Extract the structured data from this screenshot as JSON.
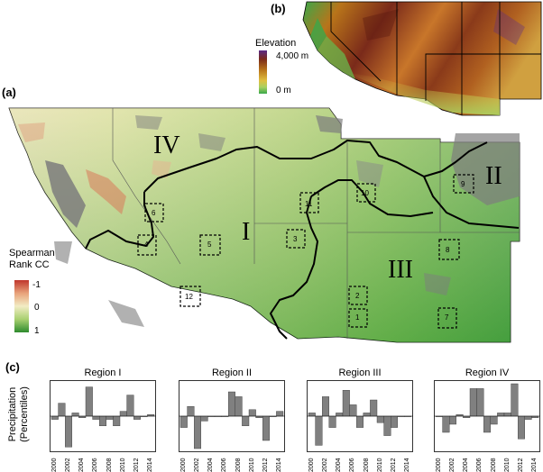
{
  "panels": {
    "a": "(a)",
    "b": "(b)",
    "c": "(c)"
  },
  "elevation_legend": {
    "title": "Elevation",
    "max_label": "4,000 m",
    "min_label": "0 m",
    "colors": [
      "#5b2a86",
      "#7a2a1a",
      "#b8741a",
      "#e0c040",
      "#a8d060",
      "#3aa84a"
    ]
  },
  "correlation_legend": {
    "title_line1": "Spearman",
    "title_line2": "Rank CC",
    "labels": [
      "-1",
      "0",
      "1"
    ],
    "colors": [
      "#c0362c",
      "#e8a27a",
      "#f2ecc4",
      "#a8d070",
      "#2e8b2e"
    ]
  },
  "regions": [
    "I",
    "II",
    "III",
    "IV"
  ],
  "sites": [
    "1",
    "2",
    "3",
    "4",
    "5",
    "6",
    "7",
    "8",
    "9",
    "10",
    "11",
    "12"
  ],
  "bar_charts": {
    "y_axis_label_line1": "Precipitation",
    "y_axis_label_line2": "(Percentiles)",
    "x_tick_labels": [
      "2000",
      "2002",
      "2004",
      "2006",
      "2008",
      "2010",
      "2012",
      "2014"
    ]
  },
  "chart_data": [
    {
      "type": "bar",
      "title": "Region I",
      "categories": [
        "2000",
        "2001",
        "2002",
        "2003",
        "2004",
        "2005",
        "2006",
        "2007",
        "2008",
        "2009",
        "2010",
        "2011",
        "2012",
        "2013",
        "2014"
      ],
      "values": [
        -0.1,
        0.4,
        -0.95,
        0.1,
        -0.05,
        0.9,
        -0.1,
        -0.3,
        -0.1,
        -0.3,
        0.15,
        0.65,
        -0.1,
        0.0,
        0.05
      ]
    },
    {
      "type": "bar",
      "title": "Region II",
      "categories": [
        "2000",
        "2001",
        "2002",
        "2003",
        "2004",
        "2005",
        "2006",
        "2007",
        "2008",
        "2009",
        "2010",
        "2011",
        "2012",
        "2013",
        "2014"
      ],
      "values": [
        -0.35,
        0.3,
        -1.0,
        -0.15,
        0.0,
        0.0,
        0.0,
        0.75,
        0.6,
        -0.3,
        0.2,
        -0.05,
        -0.75,
        0.0,
        0.15
      ]
    },
    {
      "type": "bar",
      "title": "Region III",
      "categories": [
        "2000",
        "2001",
        "2002",
        "2003",
        "2004",
        "2005",
        "2006",
        "2007",
        "2008",
        "2009",
        "2010",
        "2011",
        "2012",
        "2013",
        "2014"
      ],
      "values": [
        0.1,
        -0.9,
        0.6,
        -0.35,
        0.1,
        0.8,
        0.35,
        -0.35,
        0.1,
        0.5,
        -0.2,
        -0.6,
        -0.35,
        0.0,
        0.0
      ]
    },
    {
      "type": "bar",
      "title": "Region IV",
      "categories": [
        "2000",
        "2001",
        "2002",
        "2003",
        "2004",
        "2005",
        "2006",
        "2007",
        "2008",
        "2009",
        "2010",
        "2011",
        "2012",
        "2013",
        "2014"
      ],
      "values": [
        0.0,
        -0.5,
        -0.25,
        0.05,
        -0.05,
        0.85,
        0.85,
        -0.5,
        -0.25,
        0.1,
        0.1,
        1.0,
        -0.7,
        -0.1,
        -0.05
      ]
    }
  ]
}
